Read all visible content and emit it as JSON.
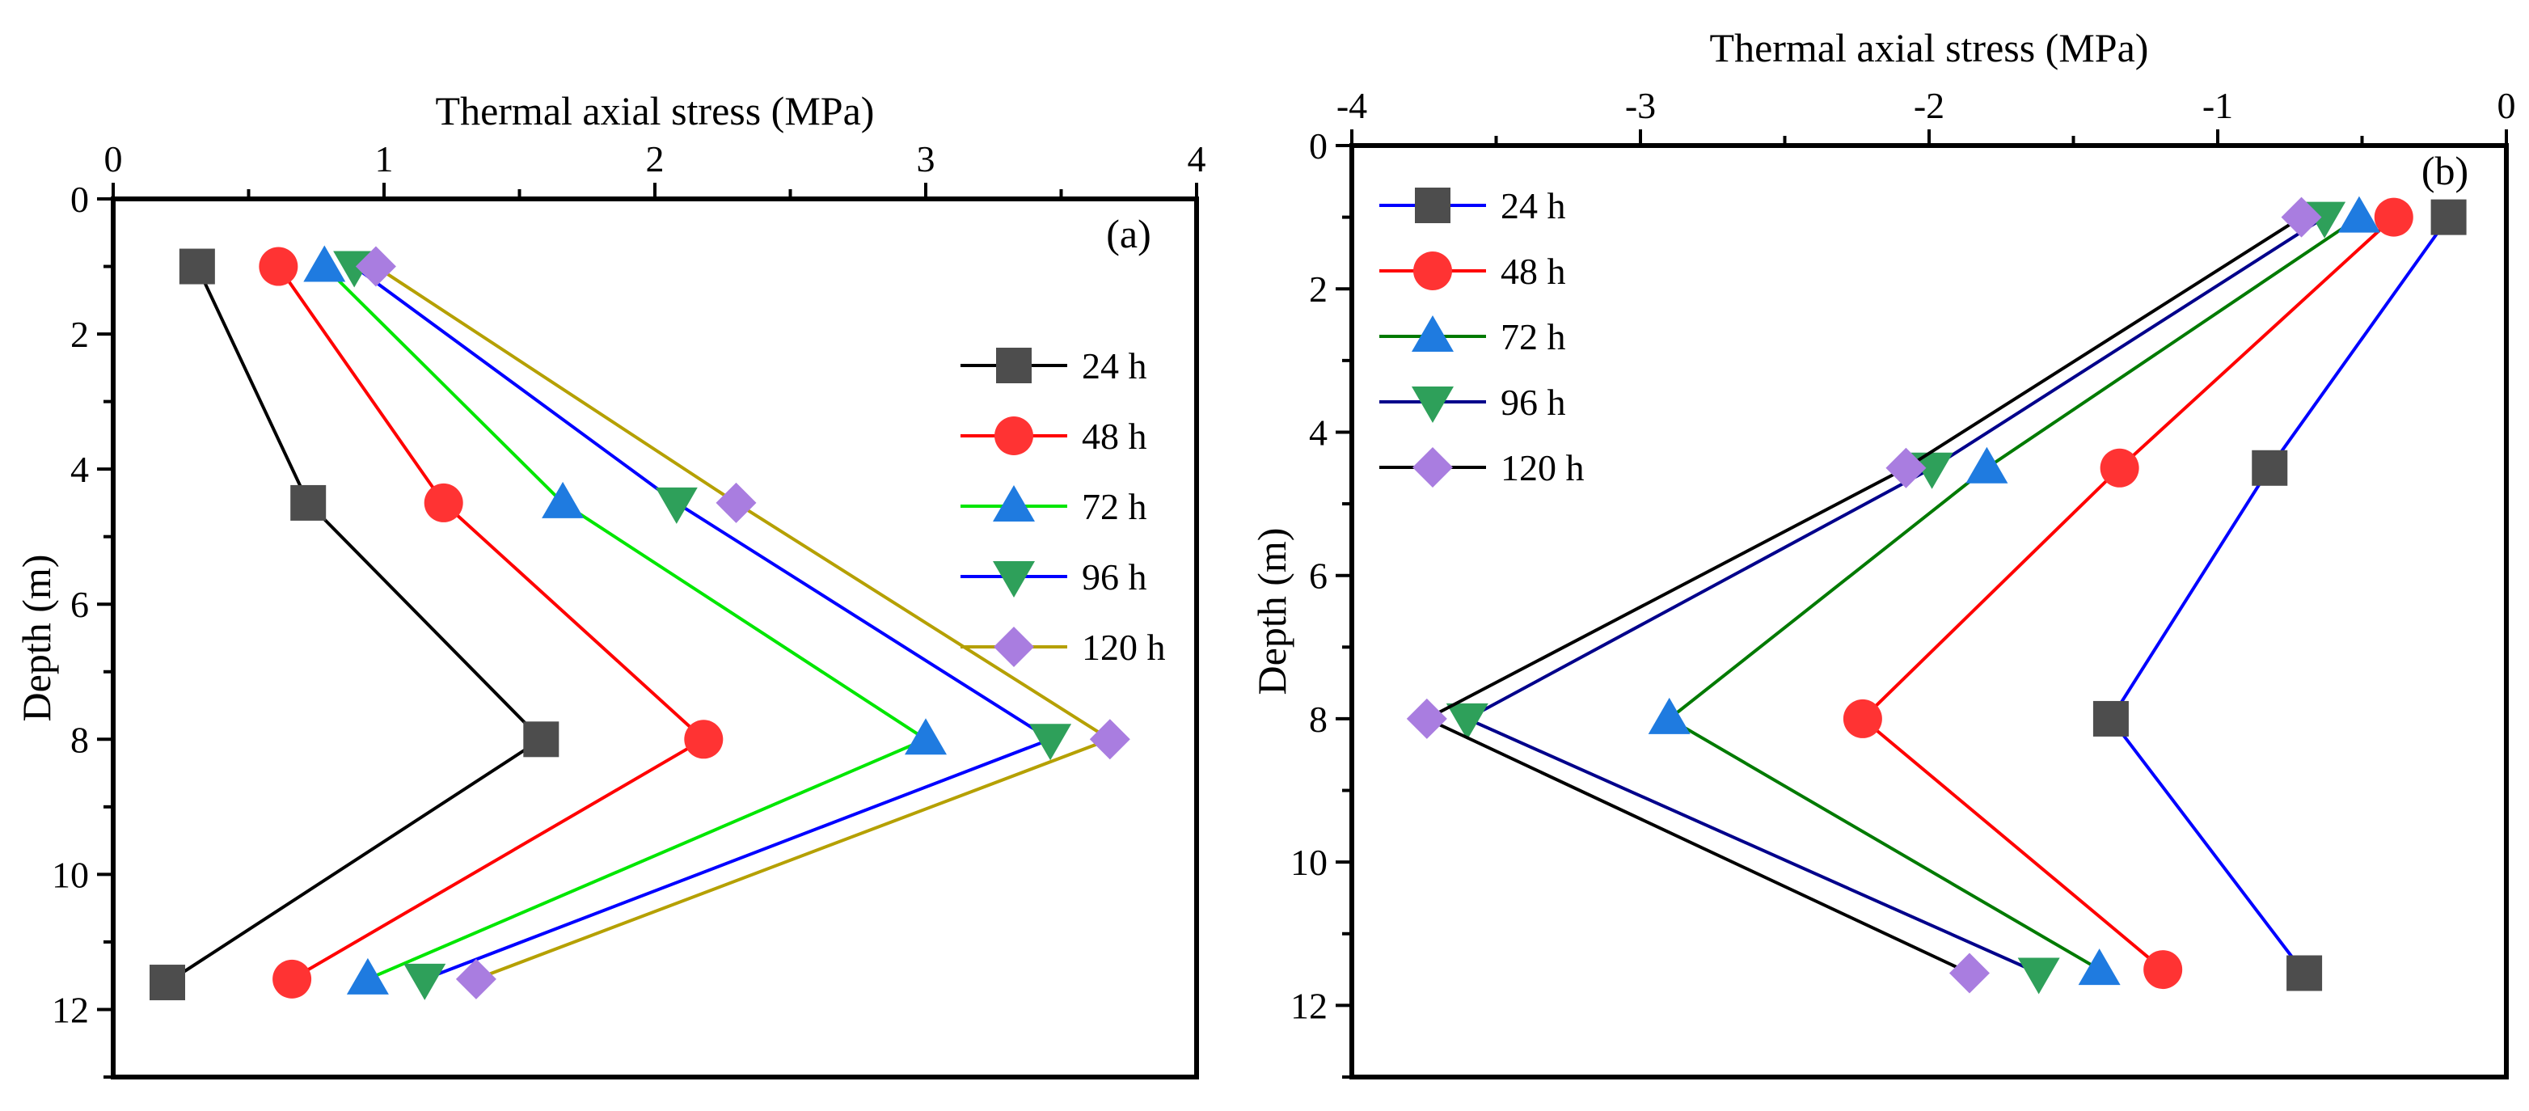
{
  "chart_data": [
    {
      "type": "line",
      "panel_label": "(a)",
      "xlabel": "Thermal axial stress (MPa)",
      "ylabel": "Depth (m)",
      "xlim": [
        0,
        4
      ],
      "ylim": [
        0,
        13
      ],
      "y_inverted": true,
      "x_axis_position": "top",
      "xticks": [
        "0",
        "1",
        "2",
        "3",
        "4"
      ],
      "yticks": [
        "0",
        "2",
        "4",
        "6",
        "8",
        "10",
        "12"
      ],
      "legend_position": "right",
      "series": [
        {
          "name": "24 h",
          "color": "#000000",
          "marker_color": "#4d4d4d",
          "marker": "square",
          "points": [
            {
              "x": 0.31,
              "y": 1.0
            },
            {
              "x": 0.72,
              "y": 4.5
            },
            {
              "x": 1.58,
              "y": 8.0
            },
            {
              "x": 0.2,
              "y": 11.6
            }
          ]
        },
        {
          "name": "48 h",
          "color": "#ff0000",
          "marker_color": "#ff3333",
          "marker": "circle",
          "points": [
            {
              "x": 0.61,
              "y": 1.0
            },
            {
              "x": 1.22,
              "y": 4.5
            },
            {
              "x": 2.18,
              "y": 8.0
            },
            {
              "x": 0.66,
              "y": 11.55
            }
          ]
        },
        {
          "name": "72 h",
          "color": "#00e600",
          "marker_color": "#1f7be0",
          "marker": "triangle-up",
          "points": [
            {
              "x": 0.78,
              "y": 1.0
            },
            {
              "x": 1.66,
              "y": 4.5
            },
            {
              "x": 3.0,
              "y": 8.0
            },
            {
              "x": 0.94,
              "y": 11.55
            }
          ]
        },
        {
          "name": "96 h",
          "color": "#0000ff",
          "marker_color": "#2ea05a",
          "marker": "triangle-down",
          "points": [
            {
              "x": 0.89,
              "y": 1.0
            },
            {
              "x": 2.08,
              "y": 4.5
            },
            {
              "x": 3.46,
              "y": 8.0
            },
            {
              "x": 1.15,
              "y": 11.55
            }
          ]
        },
        {
          "name": "120 h",
          "color": "#b5a000",
          "marker_color": "#a97de0",
          "marker": "diamond",
          "points": [
            {
              "x": 0.97,
              "y": 1.0
            },
            {
              "x": 2.3,
              "y": 4.5
            },
            {
              "x": 3.68,
              "y": 8.0
            },
            {
              "x": 1.34,
              "y": 11.55
            }
          ]
        }
      ]
    },
    {
      "type": "line",
      "panel_label": "(b)",
      "xlabel": "Thermal axial stress (MPa)",
      "ylabel": "Depth (m)",
      "xlim": [
        -4,
        0
      ],
      "ylim": [
        0,
        13
      ],
      "y_inverted": true,
      "x_axis_position": "top",
      "xticks": [
        "-4",
        "-3",
        "-2",
        "-1",
        "0"
      ],
      "yticks": [
        "0",
        "2",
        "4",
        "6",
        "8",
        "10",
        "12"
      ],
      "legend_position": "top-left",
      "series": [
        {
          "name": "24 h",
          "color": "#0000ff",
          "marker_color": "#4d4d4d",
          "marker": "square",
          "points": [
            {
              "x": -0.2,
              "y": 1.0
            },
            {
              "x": -0.82,
              "y": 4.5
            },
            {
              "x": -1.37,
              "y": 8.0
            },
            {
              "x": -0.7,
              "y": 11.55
            }
          ]
        },
        {
          "name": "48 h",
          "color": "#ff0000",
          "marker_color": "#ff3333",
          "marker": "circle",
          "points": [
            {
              "x": -0.39,
              "y": 1.0
            },
            {
              "x": -1.34,
              "y": 4.5
            },
            {
              "x": -2.23,
              "y": 8.0
            },
            {
              "x": -1.19,
              "y": 11.5
            }
          ]
        },
        {
          "name": "72 h",
          "color": "#007a00",
          "marker_color": "#1f7be0",
          "marker": "triangle-up",
          "points": [
            {
              "x": -0.51,
              "y": 1.0
            },
            {
              "x": -1.8,
              "y": 4.5
            },
            {
              "x": -2.9,
              "y": 8.0
            },
            {
              "x": -1.41,
              "y": 11.5
            }
          ]
        },
        {
          "name": "96 h",
          "color": "#00008b",
          "marker_color": "#2ea05a",
          "marker": "triangle-down",
          "points": [
            {
              "x": -0.63,
              "y": 1.0
            },
            {
              "x": -1.99,
              "y": 4.5
            },
            {
              "x": -3.6,
              "y": 8.0
            },
            {
              "x": -1.62,
              "y": 11.55
            }
          ]
        },
        {
          "name": "120 h",
          "color": "#000000",
          "marker_color": "#a97de0",
          "marker": "diamond",
          "points": [
            {
              "x": -0.71,
              "y": 1.0
            },
            {
              "x": -2.08,
              "y": 4.5
            },
            {
              "x": -3.74,
              "y": 8.0
            },
            {
              "x": -1.86,
              "y": 11.55
            }
          ]
        }
      ]
    }
  ]
}
